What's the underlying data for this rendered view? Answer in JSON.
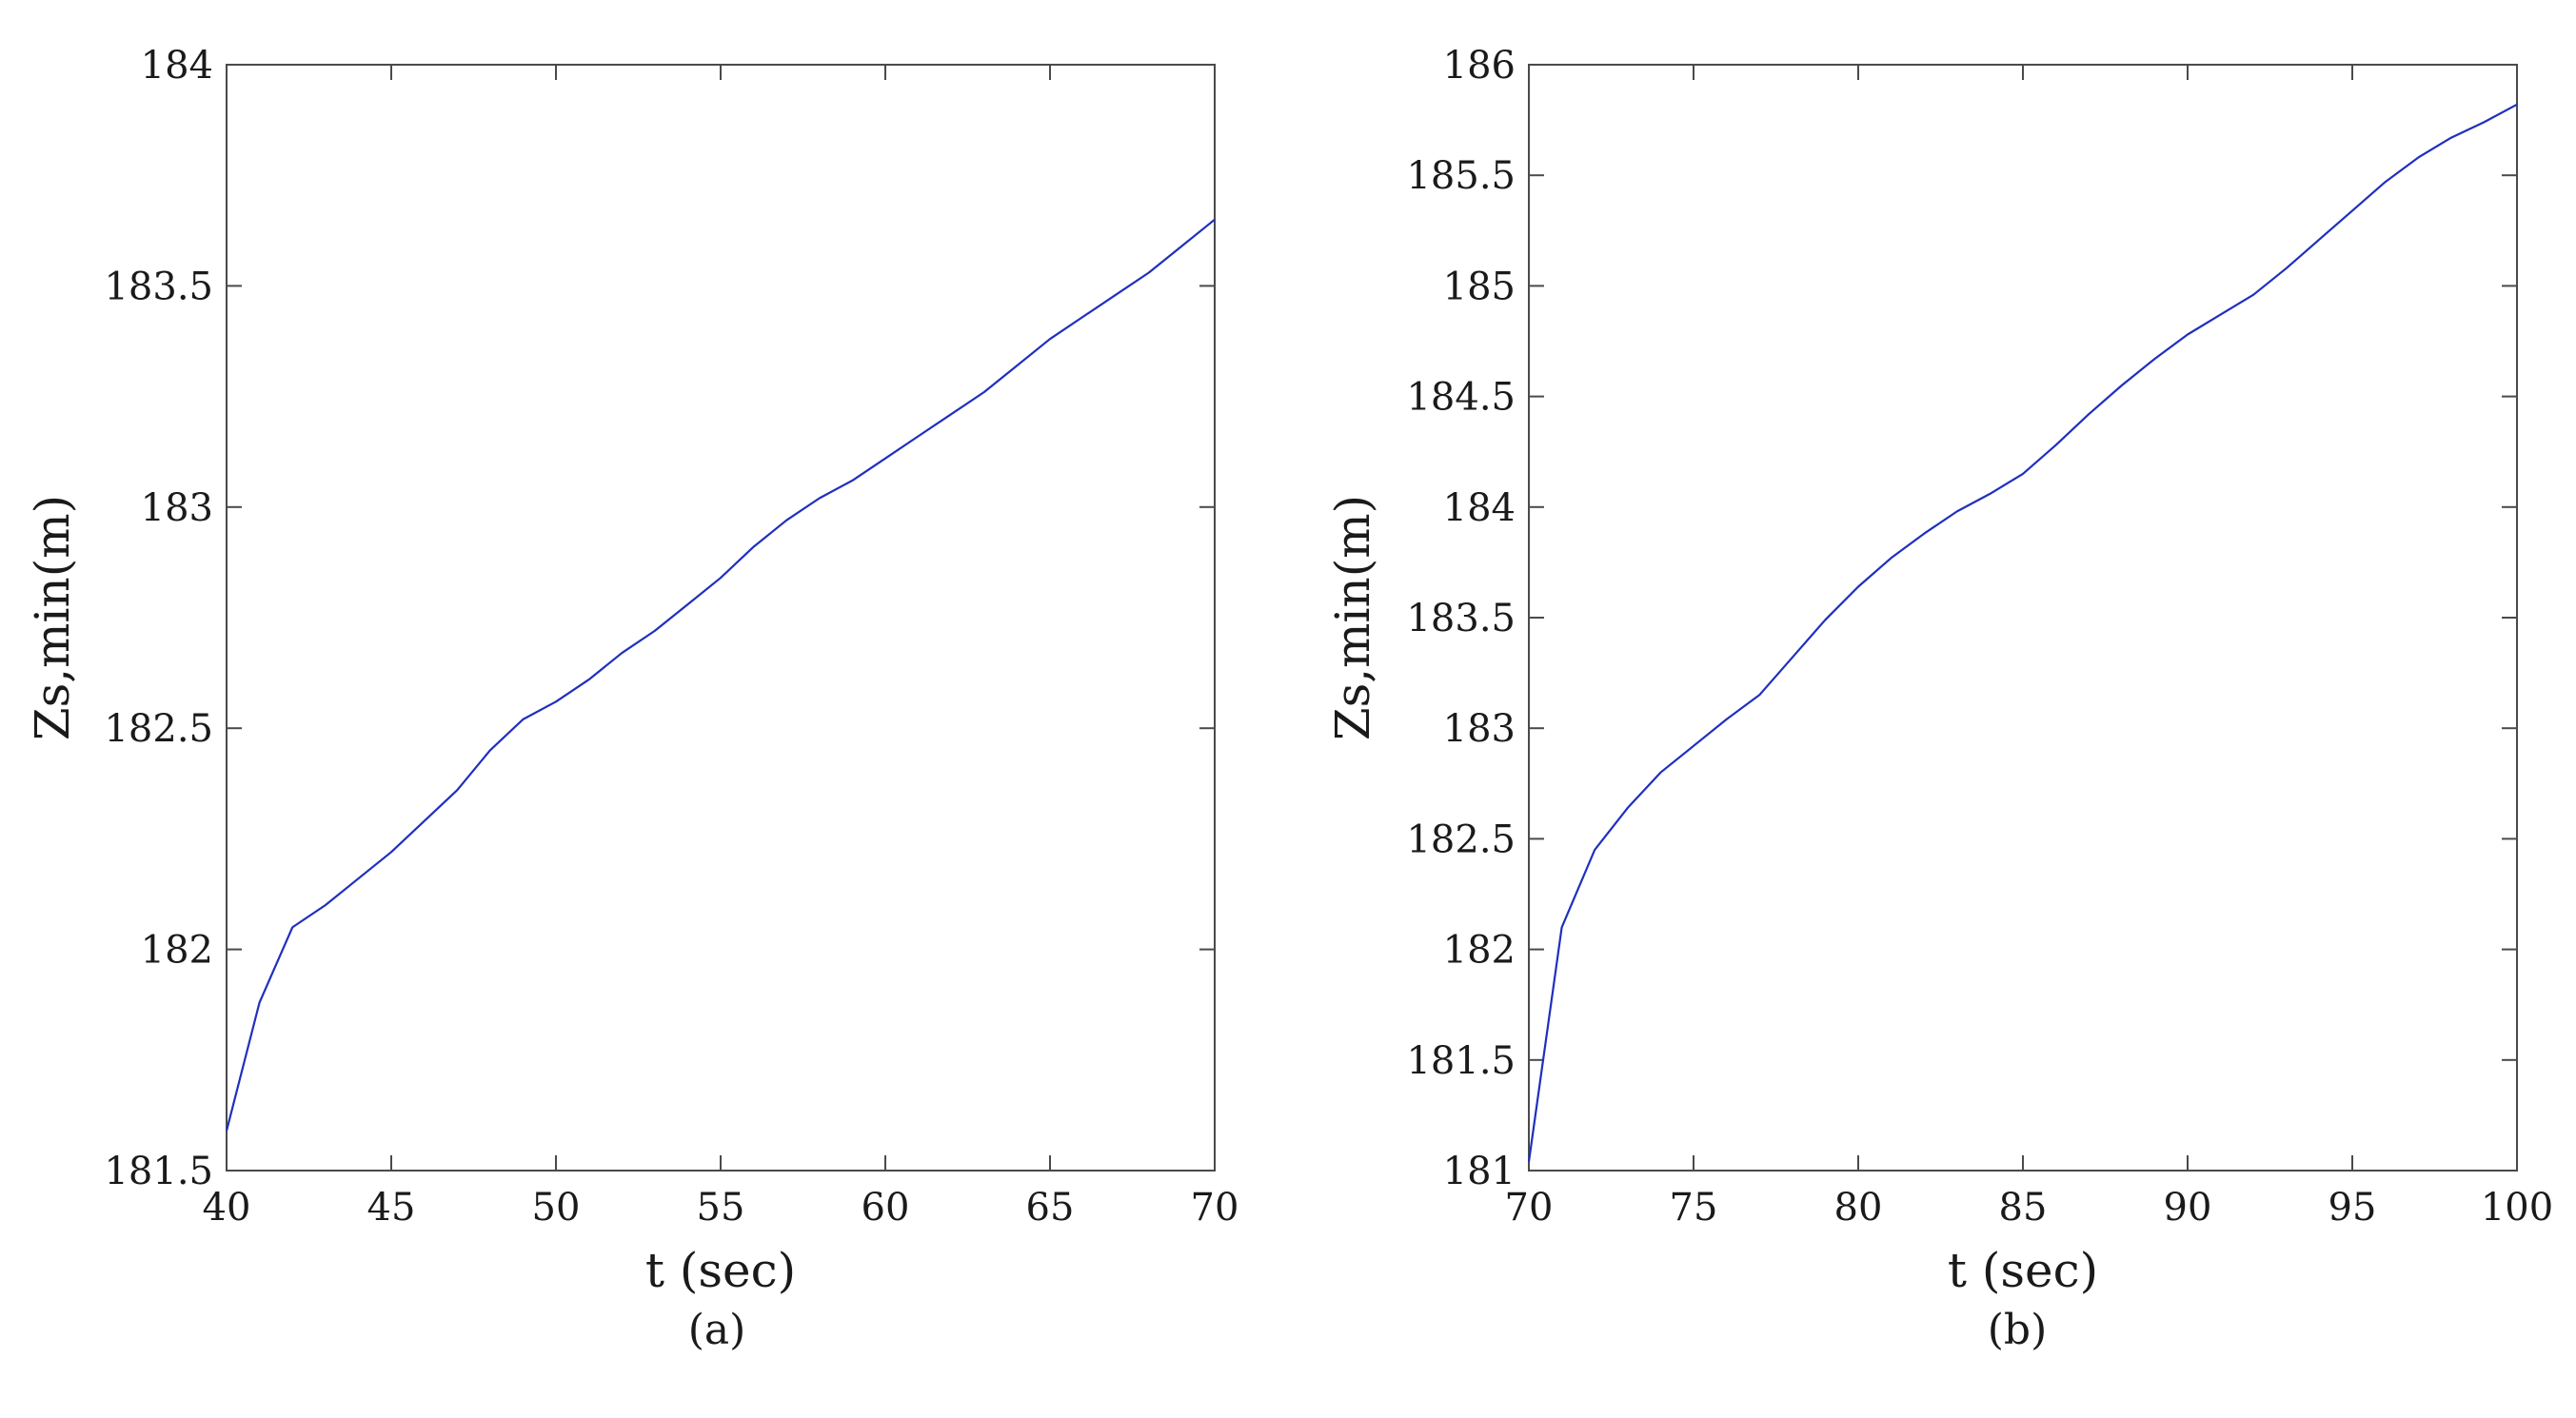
{
  "chart_data": [
    {
      "type": "line",
      "caption": "(a)",
      "xlabel": "t (sec)",
      "ylabel": "Zs,min(m)",
      "xlim": [
        40,
        70
      ],
      "ylim": [
        181.5,
        184
      ],
      "xticks": [
        40,
        45,
        50,
        55,
        60,
        65,
        70
      ],
      "yticks": [
        181.5,
        182,
        182.5,
        183,
        183.5,
        184
      ],
      "ytick_labels": [
        "181.5",
        "182",
        "182.5",
        "183",
        "183.5",
        "184"
      ],
      "grid": false,
      "line_color": "#1f2fbf",
      "series": [
        {
          "x": [
            40,
            41,
            42,
            43,
            44,
            45,
            46,
            47,
            48,
            49,
            50,
            51,
            52,
            53,
            54,
            55,
            56,
            57,
            58,
            59,
            60,
            61,
            62,
            63,
            64,
            65,
            66,
            67,
            68,
            69,
            70
          ],
          "values": [
            181.59,
            181.88,
            182.05,
            182.1,
            182.16,
            182.22,
            182.29,
            182.36,
            182.45,
            182.52,
            182.56,
            182.61,
            182.67,
            182.72,
            182.78,
            182.84,
            182.91,
            182.97,
            183.02,
            183.06,
            183.11,
            183.16,
            183.21,
            183.26,
            183.32,
            183.38,
            183.43,
            183.48,
            183.53,
            183.59,
            183.65
          ]
        }
      ]
    },
    {
      "type": "line",
      "caption": "(b)",
      "xlabel": "t (sec)",
      "ylabel": "Zs,min(m)",
      "xlim": [
        70,
        100
      ],
      "ylim": [
        181,
        186
      ],
      "xticks": [
        70,
        75,
        80,
        85,
        90,
        95,
        100
      ],
      "yticks": [
        181,
        181.5,
        182,
        182.5,
        183,
        183.5,
        184,
        184.5,
        185,
        185.5,
        186
      ],
      "ytick_labels": [
        "181",
        "181.5",
        "182",
        "182.5",
        "183",
        "183.5",
        "184",
        "184.5",
        "185",
        "185.5",
        "186"
      ],
      "grid": false,
      "line_color": "#1f2fbf",
      "series": [
        {
          "x": [
            70,
            71,
            72,
            73,
            74,
            75,
            76,
            77,
            78,
            79,
            80,
            81,
            82,
            83,
            84,
            85,
            86,
            87,
            88,
            89,
            90,
            91,
            92,
            93,
            94,
            95,
            96,
            97,
            98,
            99,
            100
          ],
          "values": [
            181.04,
            182.1,
            182.45,
            182.64,
            182.8,
            182.92,
            183.04,
            183.15,
            183.32,
            183.49,
            183.64,
            183.77,
            183.88,
            183.98,
            184.06,
            184.15,
            184.28,
            184.42,
            184.55,
            184.67,
            184.78,
            184.87,
            184.96,
            185.08,
            185.21,
            185.34,
            185.47,
            185.58,
            185.67,
            185.74,
            185.82
          ]
        }
      ]
    }
  ]
}
